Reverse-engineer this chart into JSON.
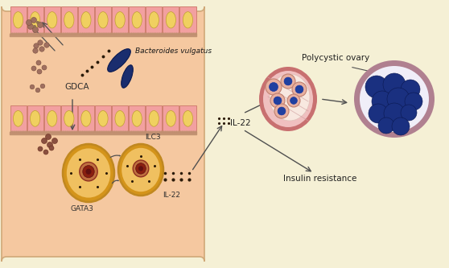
{
  "bg_color": "#f5f0d5",
  "gut_panel_color": "#f5c8a0",
  "gut_panel_border": "#d0a878",
  "cell_color": "#f2a0a0",
  "cell_border": "#d08070",
  "nucleus_color": "#f0d060",
  "nucleus_border": "#c0a030",
  "brush_color": "#c09070",
  "bacteria_color": "#1a2d6e",
  "bacteria_border": "#0a1a50",
  "bacteroides_label": "Bacteroides vulgatus",
  "gdca_label": "GDCA",
  "ilc3_label": "ILC3",
  "gata3_label": "GATA3",
  "il22_label_gut": "IL-22",
  "il22_label_right": "IL-22",
  "polycystic_label": "Polycystic ovary",
  "insulin_label": "Insulin resistance",
  "dot_color": "#2a1a08",
  "arrow_color": "#505050",
  "microbe_color_1": "#a07060",
  "microbe_color_2": "#907050",
  "ilc3_outer": "#e8a030",
  "ilc3_inner": "#f0c870",
  "nucleus_brown": "#b06040",
  "nucleus_dark": "#7a2010",
  "nucleus_inner": "#601010",
  "ovary1_outer": "#c87070",
  "ovary1_inner": "#f0c0c0",
  "ovary1_cell_bg": "#e8b0a0",
  "ovary1_nucleus": "#2040a0",
  "ovary2_outer": "#b08090",
  "ovary2_inner": "#f0eef8",
  "ovary2_follicle": "#1a3080"
}
